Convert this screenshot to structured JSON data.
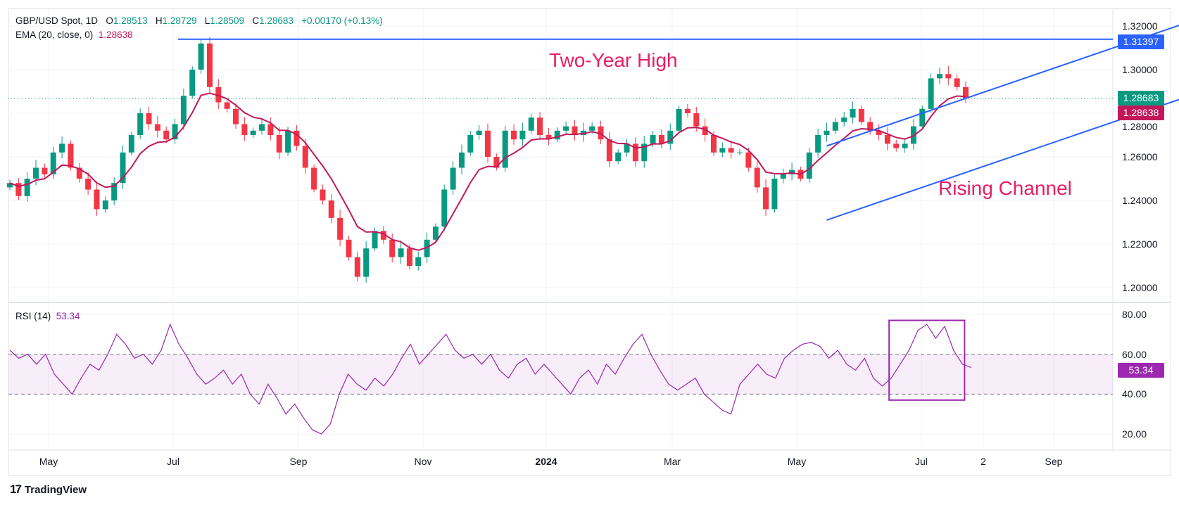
{
  "header": {
    "symbol": "GBP/USD Spot, 1D",
    "open_label": "O",
    "open": "1.28513",
    "high_label": "H",
    "high": "1.28729",
    "low_label": "L",
    "low": "1.28509",
    "close_label": "C",
    "close": "1.28683",
    "change": "+0.00170 (+0.13%)"
  },
  "ema_legend": {
    "label": "EMA (20, close, 0)",
    "value": "1.28638"
  },
  "rsi_legend": {
    "label": "RSI (14)",
    "value": "53.34"
  },
  "annotations": {
    "high": "Two-Year High",
    "channel": "Rising Channel"
  },
  "footer": {
    "brand": "TradingView"
  },
  "colors": {
    "up": "#089981",
    "down": "#f23645",
    "ema": "#c2185b",
    "trend": "#2962ff",
    "rsi": "#9c27b0",
    "annotation": "#e91e63"
  },
  "chart_data": [
    {
      "type": "candlestick",
      "title": "GBP/USD Spot, 1D",
      "ylim": [
        1.19,
        1.325
      ],
      "yticks": [
        "1.32000",
        "1.30000",
        "1.28000",
        "1.26000",
        "1.24000",
        "1.22000",
        "1.20000"
      ],
      "ytick_values": [
        1.32,
        1.3,
        1.28,
        1.26,
        1.24,
        1.22,
        1.2
      ],
      "xticks": [
        "May",
        "Jul",
        "Sep",
        "Nov",
        "2024",
        "Mar",
        "May",
        "Jul",
        "2",
        "Sep"
      ],
      "price_tags": {
        "two_year_high": "1.31397",
        "last": "1.28683",
        "ema": "1.28638"
      },
      "two_year_high": 1.31397,
      "last_price": 1.28683,
      "channel": {
        "upper": [
          [
            94,
            1.265
          ],
          [
            138,
            1.325
          ]
        ],
        "lower": [
          [
            94,
            1.231
          ],
          [
            138,
            1.291
          ]
        ]
      },
      "closes": [
        1.248,
        1.242,
        1.25,
        1.255,
        1.252,
        1.262,
        1.266,
        1.255,
        1.25,
        1.245,
        1.236,
        1.24,
        1.248,
        1.262,
        1.27,
        1.28,
        1.275,
        1.272,
        1.268,
        1.275,
        1.288,
        1.3,
        1.312,
        1.292,
        1.285,
        1.282,
        1.275,
        1.27,
        1.272,
        1.275,
        1.27,
        1.262,
        1.272,
        1.265,
        1.255,
        1.245,
        1.24,
        1.232,
        1.222,
        1.214,
        1.205,
        1.218,
        1.226,
        1.222,
        1.214,
        1.218,
        1.21,
        1.214,
        1.222,
        1.228,
        1.245,
        1.255,
        1.262,
        1.27,
        1.272,
        1.26,
        1.255,
        1.272,
        1.268,
        1.272,
        1.278,
        1.27,
        1.268,
        1.272,
        1.274,
        1.27,
        1.272,
        1.274,
        1.268,
        1.258,
        1.262,
        1.266,
        1.258,
        1.266,
        1.27,
        1.266,
        1.272,
        1.282,
        1.28,
        1.274,
        1.27,
        1.262,
        1.264,
        1.262,
        1.262,
        1.255,
        1.246,
        1.236,
        1.25,
        1.252,
        1.254,
        1.25,
        1.262,
        1.27,
        1.272,
        1.276,
        1.278,
        1.282,
        1.276,
        1.272,
        1.27,
        1.266,
        1.264,
        1.266,
        1.274,
        1.282,
        1.296,
        1.298,
        1.296,
        1.292,
        1.28683
      ]
    },
    {
      "type": "line",
      "title": "RSI (14)",
      "ylim": [
        10,
        85
      ],
      "yticks": [
        "80.00",
        "60.00",
        "40.00",
        "20.00"
      ],
      "ytick_values": [
        80,
        60,
        40,
        20
      ],
      "bands": [
        40,
        60
      ],
      "last_tag": "53.34",
      "highlight_box": {
        "from_index": 99,
        "to_index": 107,
        "range": [
          37,
          77
        ]
      },
      "values": [
        62,
        58,
        60,
        55,
        60,
        50,
        45,
        40,
        48,
        55,
        52,
        60,
        70,
        65,
        58,
        60,
        55,
        62,
        75,
        65,
        58,
        50,
        45,
        48,
        52,
        45,
        50,
        40,
        35,
        45,
        38,
        30,
        35,
        28,
        22,
        20,
        25,
        40,
        50,
        45,
        42,
        48,
        44,
        50,
        58,
        65,
        55,
        60,
        65,
        70,
        62,
        58,
        60,
        55,
        60,
        52,
        48,
        55,
        58,
        50,
        55,
        50,
        45,
        40,
        48,
        52,
        45,
        55,
        50,
        58,
        65,
        70,
        60,
        52,
        45,
        42,
        45,
        48,
        40,
        36,
        32,
        30,
        45,
        50,
        55,
        50,
        48,
        58,
        62,
        65,
        66,
        64,
        58,
        62,
        55,
        52,
        58,
        48,
        44,
        48,
        55,
        62,
        72,
        75,
        68,
        74,
        62,
        55,
        53.34
      ]
    }
  ]
}
